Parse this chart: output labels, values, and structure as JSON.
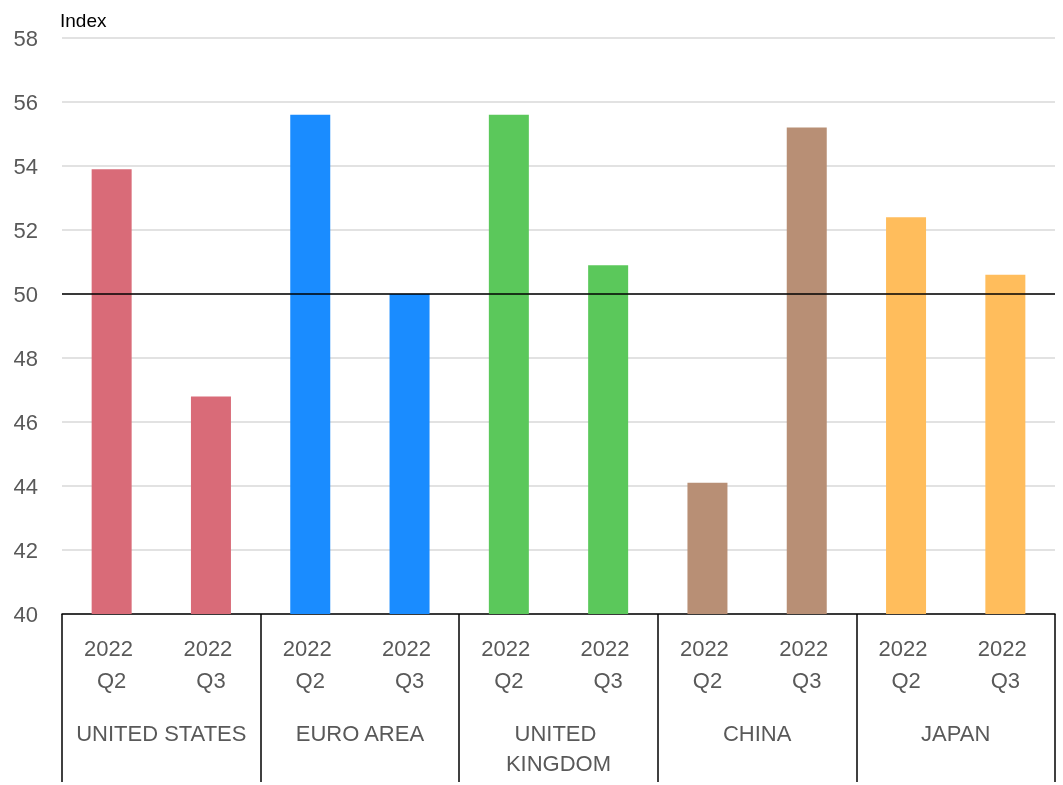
{
  "chart_data": {
    "type": "bar",
    "ylabel": "Index",
    "categories": [
      "2022 Q2",
      "2022 Q3",
      "2022 Q2",
      "2022 Q3",
      "2022 Q2",
      "2022 Q3",
      "2022 Q2",
      "2022 Q3",
      "2022 Q2",
      "2022 Q3"
    ],
    "values": [
      53.9,
      46.8,
      55.6,
      50.0,
      55.6,
      50.9,
      44.1,
      55.2,
      52.4,
      50.6
    ],
    "colors": [
      "#d96b78",
      "#d96b78",
      "#1a8cff",
      "#1a8cff",
      "#5bc85b",
      "#5bc85b",
      "#b88f75",
      "#b88f75",
      "#ffbd5c",
      "#ffbd5c"
    ],
    "annotations": [
      "UNITED STATES",
      "EURO AREA",
      "UNITED KINGDOM",
      "CHINA",
      "JAPAN"
    ],
    "ylim": [
      40,
      58
    ],
    "yticks": [
      40,
      42,
      44,
      46,
      48,
      50,
      52,
      54,
      56,
      58
    ],
    "grid": "y",
    "ref_lines": [
      {
        "axis": "y",
        "value": 50,
        "color": "#000000"
      }
    ]
  }
}
